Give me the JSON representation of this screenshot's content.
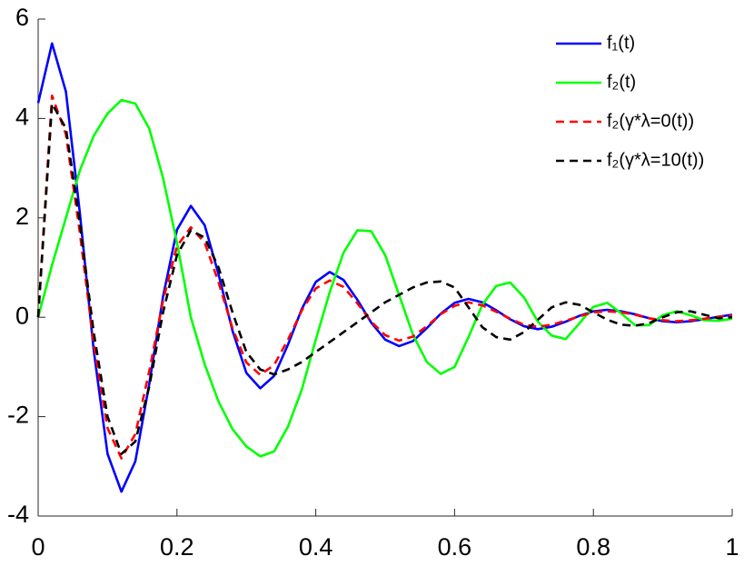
{
  "chart_data": {
    "type": "line",
    "x": [
      0,
      0.02,
      0.04,
      0.06,
      0.08,
      0.1,
      0.12,
      0.14,
      0.16,
      0.18,
      0.2,
      0.22,
      0.24,
      0.26,
      0.28,
      0.3,
      0.32,
      0.34,
      0.36,
      0.38,
      0.4,
      0.42,
      0.44,
      0.46,
      0.48,
      0.5,
      0.52,
      0.54,
      0.56,
      0.58,
      0.6,
      0.62,
      0.64,
      0.66,
      0.68,
      0.7,
      0.72,
      0.74,
      0.76,
      0.78,
      0.8,
      0.82,
      0.84,
      0.86,
      0.88,
      0.9,
      0.92,
      0.94,
      0.96,
      0.98,
      1
    ],
    "series": [
      {
        "name": "f₁(t)",
        "color": "#0000ff",
        "dash": false,
        "values": [
          4.31,
          5.51,
          4.54,
          2.11,
          -0.66,
          -2.75,
          -3.51,
          -2.9,
          -1.35,
          0.42,
          1.76,
          2.24,
          1.85,
          0.86,
          -0.27,
          -1.12,
          -1.43,
          -1.18,
          -0.55,
          0.17,
          0.71,
          0.91,
          0.75,
          0.35,
          -0.11,
          -0.45,
          -0.58,
          -0.48,
          -0.22,
          0.07,
          0.29,
          0.37,
          0.3,
          0.14,
          -0.04,
          -0.18,
          -0.24,
          -0.19,
          -0.09,
          0.03,
          0.12,
          0.15,
          0.12,
          0.06,
          -0.02,
          -0.08,
          -0.1,
          -0.08,
          -0.04,
          0.01,
          0.05
        ]
      },
      {
        "name": "f₂(t)",
        "color": "#00ff00",
        "dash": false,
        "values": [
          0,
          1.05,
          2.0,
          2.95,
          3.65,
          4.1,
          4.37,
          4.3,
          3.8,
          2.8,
          1.5,
          0,
          -0.95,
          -1.7,
          -2.25,
          -2.6,
          -2.8,
          -2.7,
          -2.2,
          -1.45,
          -0.45,
          0.5,
          1.3,
          1.75,
          1.73,
          1.25,
          0.45,
          -0.35,
          -0.9,
          -1.14,
          -1.0,
          -0.4,
          0.25,
          0.63,
          0.7,
          0.4,
          -0.09,
          -0.37,
          -0.44,
          -0.12,
          0.21,
          0.29,
          0.08,
          -0.16,
          -0.16,
          0.04,
          0.12,
          0.04,
          -0.06,
          -0.07,
          -0.03
        ]
      },
      {
        "name": "f₂(γ*λ=0(t))",
        "color": "#ff0000",
        "dash": true,
        "values": [
          0,
          4.46,
          3.68,
          1.71,
          -0.53,
          -2.23,
          -2.84,
          -2.35,
          -1.09,
          0.34,
          1.43,
          1.81,
          1.5,
          0.7,
          -0.22,
          -0.91,
          -1.16,
          -0.96,
          -0.45,
          0.14,
          0.58,
          0.74,
          0.61,
          0.28,
          -0.09,
          -0.36,
          -0.47,
          -0.39,
          -0.18,
          0.06,
          0.23,
          0.3,
          0.24,
          0.11,
          -0.03,
          -0.15,
          -0.19,
          -0.15,
          -0.07,
          0.02,
          0.1,
          0.12,
          0.1,
          0.05,
          -0.02,
          -0.06,
          -0.08,
          -0.06,
          -0.03,
          0.01,
          0.04
        ]
      },
      {
        "name": "f₂(γ*λ=10(t))",
        "color": "#000000",
        "dash": true,
        "values": [
          0,
          4.3,
          3.8,
          1.9,
          -0.3,
          -2.0,
          -2.75,
          -2.5,
          -1.4,
          0.1,
          1.25,
          1.75,
          1.6,
          1.0,
          0.1,
          -0.7,
          -1.05,
          -1.15,
          -1.05,
          -0.9,
          -0.7,
          -0.5,
          -0.3,
          -0.1,
          0.1,
          0.3,
          0.45,
          0.6,
          0.7,
          0.72,
          0.6,
          0.2,
          -0.2,
          -0.4,
          -0.45,
          -0.3,
          -0.05,
          0.2,
          0.3,
          0.25,
          0.1,
          -0.05,
          -0.15,
          -0.17,
          -0.12,
          0.0,
          0.1,
          0.12,
          0.05,
          -0.02,
          0.0
        ]
      }
    ],
    "xlim": [
      0,
      1
    ],
    "ylim": [
      -4,
      6
    ],
    "xticks": [
      0,
      0.2,
      0.4,
      0.6,
      0.8,
      1
    ],
    "yticks": [
      -4,
      -2,
      0,
      2,
      4,
      6
    ],
    "legend": "top-right",
    "grid": false
  }
}
